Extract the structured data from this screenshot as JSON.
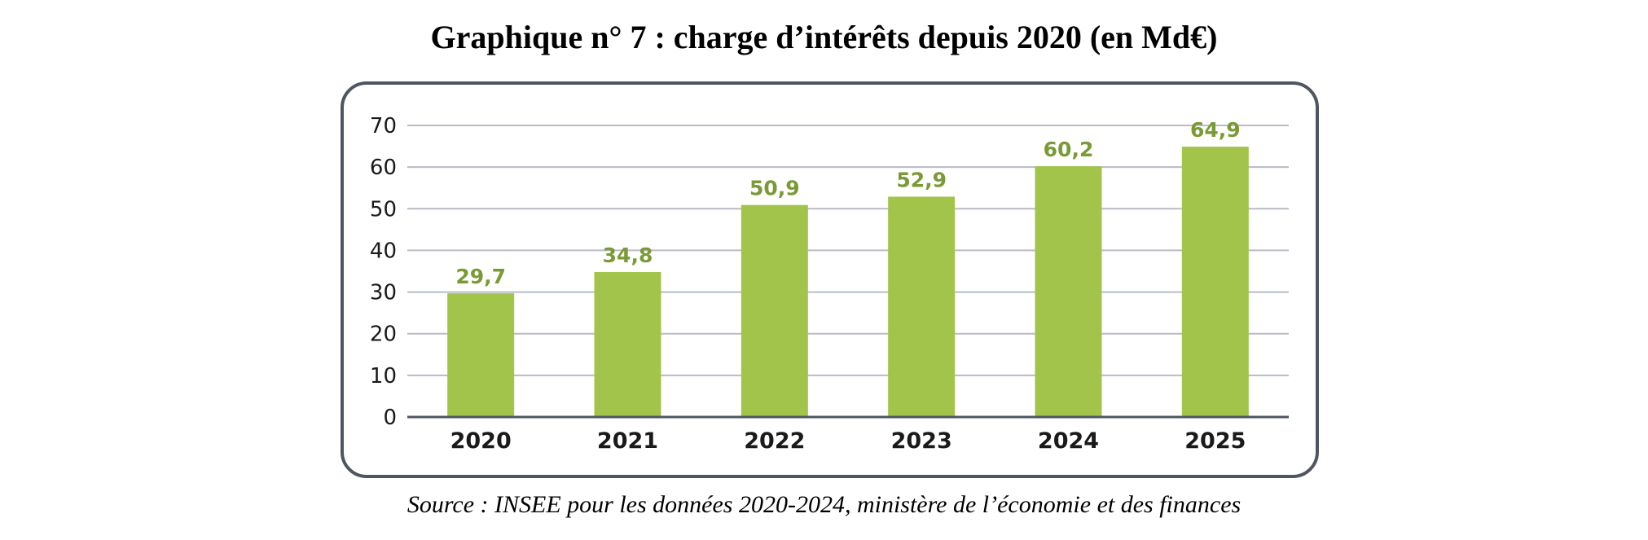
{
  "title": "Graphique n° 7 : charge d’intérêts depuis 2020 (en Md€)",
  "source": "Source : INSEE pour les données 2020-2024, ministère de l’économie et des finances",
  "colors": {
    "bar": "#a3c44a",
    "label": "#7a9a35",
    "grid": "#b8bcc6",
    "axis": "#4f5561"
  },
  "chart_data": {
    "type": "bar",
    "categories": [
      "2020",
      "2021",
      "2022",
      "2023",
      "2024",
      "2025"
    ],
    "values": [
      29.7,
      34.8,
      50.9,
      52.9,
      60.2,
      64.9
    ],
    "value_labels": [
      "29,7",
      "34,8",
      "50,9",
      "52,9",
      "60,2",
      "64,9"
    ],
    "yticks": [
      "0",
      "10",
      "20",
      "30",
      "40",
      "50",
      "60",
      "70"
    ],
    "ylim": [
      0,
      70
    ],
    "grid": true,
    "legend": "none",
    "title": "Graphique n° 7 : charge d’intérêts depuis 2020 (en Md€)",
    "xlabel": "",
    "ylabel": ""
  }
}
